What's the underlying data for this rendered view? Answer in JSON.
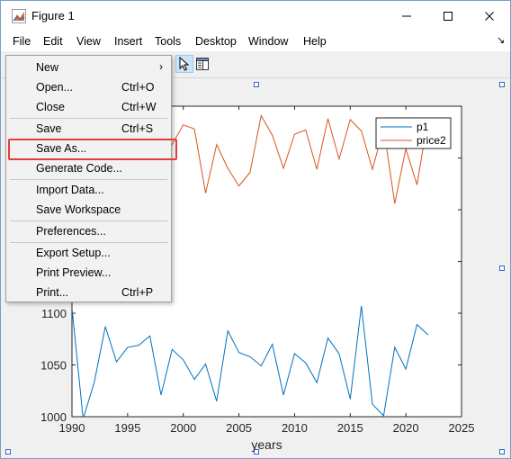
{
  "window": {
    "title": "Figure 1"
  },
  "icons": {
    "app": "matlab-figure-icon",
    "minimize": "minimize-icon",
    "maximize": "maximize-icon",
    "close": "close-icon",
    "dock": "dock-arrow-icon",
    "pointer": "cursor-arrow-icon",
    "property": "property-inspector-icon"
  },
  "menubar": {
    "items": [
      "File",
      "Edit",
      "View",
      "Insert",
      "Tools",
      "Desktop",
      "Window",
      "Help"
    ]
  },
  "file_menu": {
    "items": [
      {
        "label": "New",
        "shortcut": "",
        "submenu": true
      },
      {
        "label": "Open...",
        "shortcut": "Ctrl+O"
      },
      {
        "label": "Close",
        "shortcut": "Ctrl+W"
      },
      {
        "label": "Save",
        "shortcut": "Ctrl+S"
      },
      {
        "label": "Save As...",
        "shortcut": "",
        "highlighted": true
      },
      {
        "label": "Generate Code...",
        "shortcut": ""
      },
      {
        "label": "Import Data...",
        "shortcut": ""
      },
      {
        "label": "Save Workspace",
        "shortcut": ""
      },
      {
        "label": "Preferences...",
        "shortcut": ""
      },
      {
        "label": "Export Setup...",
        "shortcut": ""
      },
      {
        "label": "Print Preview...",
        "shortcut": ""
      },
      {
        "label": "Print...",
        "shortcut": "Ctrl+P"
      }
    ],
    "highlight_color": "#e0403c"
  },
  "chart_data": {
    "type": "line",
    "xlabel": "years",
    "ylabel": "",
    "title": "",
    "xlim": [
      1990,
      2025
    ],
    "ylim": [
      1000,
      1300
    ],
    "xticks": [
      1990,
      1995,
      2000,
      2005,
      2010,
      2015,
      2020,
      2025
    ],
    "yticks_visible": [
      1000,
      1050,
      1100
    ],
    "legend_position": "top-right",
    "x": [
      1990,
      1991,
      1992,
      1993,
      1994,
      1995,
      1996,
      1997,
      1998,
      1999,
      2000,
      2001,
      2002,
      2003,
      2004,
      2005,
      2006,
      2007,
      2008,
      2009,
      2010,
      2011,
      2012,
      2013,
      2014,
      2015,
      2016,
      2017,
      2018,
      2019,
      2020,
      2021,
      2022
    ],
    "series": [
      {
        "name": "p1",
        "color": "#0072bd",
        "values": [
          1105,
          998,
          1033,
          1087,
          1053,
          1067,
          1069,
          1078,
          1021,
          1065,
          1055,
          1036,
          1051,
          1015,
          1083,
          1062,
          1058,
          1049,
          1070,
          1021,
          1061,
          1052,
          1033,
          1076,
          1061,
          1017,
          1107,
          1012,
          1001,
          1067,
          1046,
          1089,
          1079
        ]
      },
      {
        "name": "price2",
        "color": "#d95319",
        "values": [
          1283,
          1262,
          1230,
          1258,
          1244,
          1267,
          1268,
          1276,
          1249,
          1263,
          1282,
          1278,
          1216,
          1263,
          1240,
          1223,
          1236,
          1291,
          1272,
          1240,
          1273,
          1277,
          1239,
          1288,
          1249,
          1287,
          1276,
          1239,
          1279,
          1206,
          1259,
          1224,
          1289
        ]
      }
    ]
  }
}
